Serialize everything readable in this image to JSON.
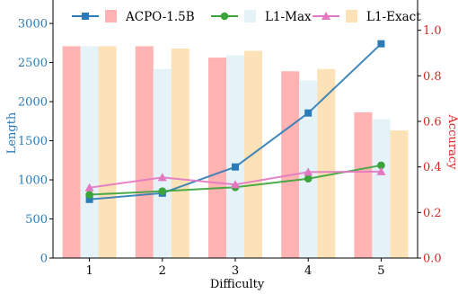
{
  "chart_data": {
    "type": "bar",
    "xlabel": "Difficulty",
    "ylabel_left": "Length",
    "ylabel_right": "Accuracy",
    "categories": [
      "1",
      "2",
      "3",
      "4",
      "5"
    ],
    "ylim_left": [
      0,
      3300
    ],
    "yticks_left": [
      0,
      500,
      1000,
      1500,
      2000,
      2500,
      3000
    ],
    "ylim_right": [
      0,
      1.133
    ],
    "yticks_right": [
      "0.0",
      "0.2",
      "0.4",
      "0.6",
      "0.8",
      "1.0"
    ],
    "bar_series": [
      {
        "name": "ACPO-1.5B",
        "color": "#ffb3b3",
        "accuracy": [
          0.93,
          0.93,
          0.88,
          0.82,
          0.64
        ]
      },
      {
        "name": "L1-Max",
        "color": "#e5f3f8",
        "accuracy": [
          0.93,
          0.83,
          0.89,
          0.78,
          0.61
        ]
      },
      {
        "name": "L1-Exact",
        "color": "#fce2b6",
        "accuracy": [
          0.93,
          0.92,
          0.91,
          0.83,
          0.56
        ]
      }
    ],
    "line_series": [
      {
        "name": "ACPO-1.5B",
        "color": "#2c7bb6",
        "marker": "square",
        "length": [
          750,
          830,
          1165,
          1855,
          2740
        ]
      },
      {
        "name": "L1-Max",
        "color": "#3aa33a",
        "marker": "circle",
        "length": [
          810,
          855,
          905,
          1015,
          1185
        ]
      },
      {
        "name": "L1-Exact",
        "color": "#e377c2",
        "marker": "triangle",
        "length": [
          900,
          1030,
          940,
          1100,
          1105
        ]
      }
    ],
    "legend": {
      "placement": "top",
      "entries": [
        "ACPO-1.5B",
        "L1-Max",
        "L1-Exact"
      ]
    },
    "axis_colors": {
      "left": "#2c7bb6",
      "right": "#d62728"
    },
    "grid": false
  }
}
